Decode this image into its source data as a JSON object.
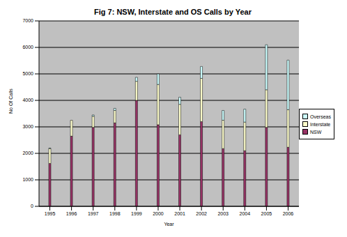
{
  "chart_data": {
    "type": "bar",
    "title": "Fig 7: NSW, Interstate and OS Calls by Year",
    "x_label": "Year",
    "y_label": "No Of Calls",
    "categories": [
      "1995",
      "1996",
      "1997",
      "1998",
      "1999",
      "2000",
      "2001",
      "2002",
      "2003",
      "2004",
      "2005",
      "2006"
    ],
    "series": [
      {
        "name": "NSW",
        "color": "#993366",
        "values": [
          1620,
          2650,
          2980,
          3150,
          4000,
          3080,
          2700,
          3200,
          2180,
          2100,
          2980,
          2230
        ]
      },
      {
        "name": "Interstate",
        "color": "#ffffcc",
        "values": [
          560,
          600,
          420,
          470,
          720,
          1520,
          1150,
          1630,
          1070,
          1080,
          1420,
          1420
        ]
      },
      {
        "name": "Overseas",
        "color": "#ccffff",
        "values": [
          20,
          0,
          50,
          80,
          150,
          400,
          270,
          450,
          370,
          490,
          1700,
          1870
        ]
      }
    ],
    "stacked": true,
    "ylim": [
      0,
      7000
    ],
    "yticks": [
      0,
      1000,
      2000,
      3000,
      4000,
      5000,
      6000,
      7000
    ],
    "grid": true,
    "legend": "right"
  }
}
